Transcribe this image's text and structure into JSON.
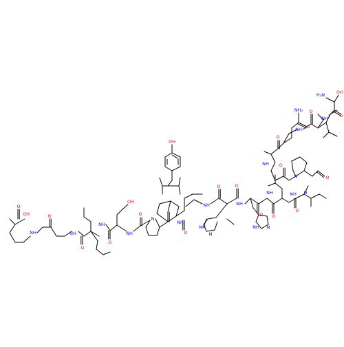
{
  "colors": {
    "bond": "#000000",
    "oxygen": "#ff0000",
    "nitrogen": "#0000ff",
    "background": "#ffffff"
  },
  "labels": {
    "oh": "OH",
    "o": "O",
    "nh": "NH",
    "h": "H",
    "n": "N",
    "nh2": "NH₂",
    "h2n": "H₂N"
  }
}
